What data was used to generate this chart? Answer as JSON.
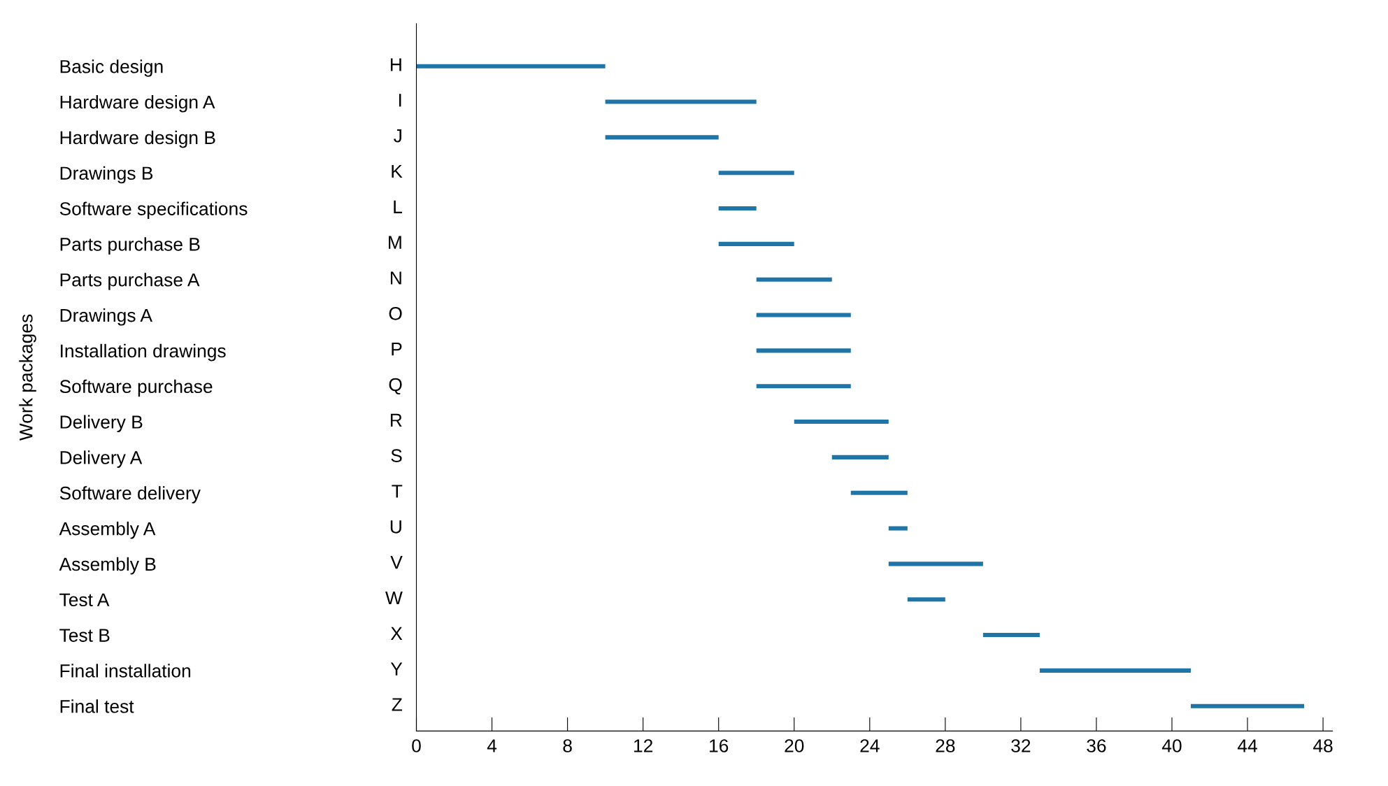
{
  "chart_data": {
    "type": "bar",
    "orientation": "horizontal",
    "ylabel": "Work packages",
    "categories": [
      "Basic design",
      "Hardware design A",
      "Hardware design B",
      "Drawings B",
      "Software specifications",
      "Parts purchase B",
      "Parts purchase A",
      "Drawings A",
      "Installation drawings",
      "Software purchase",
      "Delivery B",
      "Delivery A",
      "Software delivery",
      "Assembly A",
      "Assembly B",
      "Test A",
      "Test B",
      "Final installation",
      "Final test"
    ],
    "y2_categories": [
      "H",
      "I",
      "J",
      "K",
      "L",
      "M",
      "N",
      "O",
      "P",
      "Q",
      "R",
      "S",
      "T",
      "U",
      "V",
      "W",
      "X",
      "Y",
      "Z"
    ],
    "base": [
      0,
      10,
      10,
      16,
      16,
      16,
      18,
      18,
      18,
      18,
      20,
      22,
      23,
      25,
      25,
      26,
      30,
      33,
      41
    ],
    "values": [
      10,
      8,
      6,
      4,
      2,
      4,
      4,
      5,
      5,
      5,
      5,
      3,
      3,
      1,
      5,
      2,
      3,
      8,
      6
    ],
    "color": "#1f74a8",
    "xlim": [
      0,
      48.5
    ],
    "xticks": [
      0,
      4,
      8,
      12,
      16,
      20,
      24,
      28,
      32,
      36,
      40,
      44,
      48
    ],
    "grid": false,
    "legend": false
  }
}
